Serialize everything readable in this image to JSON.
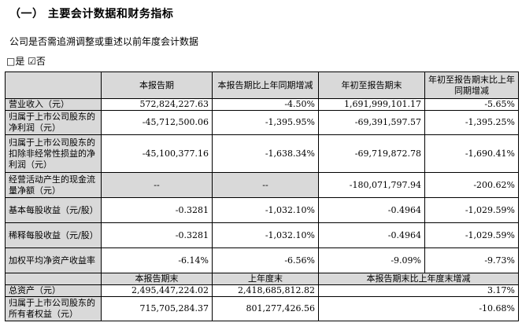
{
  "heading": "（一）  主要会计数据和财务指标",
  "line1": "公司是否需追溯调整或重述以前年度会计数据",
  "line2": "□是 ☑否",
  "table": {
    "headers": [
      "",
      "本报告期",
      "本报告期比上年同期增减",
      "年初至报告期末",
      "年初至报告期末比上年同期增减"
    ],
    "rows": [
      {
        "label": "营业收入（元）",
        "c1": "572,824,227.63",
        "c2": "-4.50%",
        "c3": "1,691,999,101.17",
        "c4": "-5.65%"
      },
      {
        "label": "归属于上市公司股东的净利润（元）",
        "c1": "-45,712,500.06",
        "c2": "-1,395.95%",
        "c3": "-69,391,597.57",
        "c4": "-1,395.25%"
      },
      {
        "label": "归属于上市公司股东的扣除非经常性损益的净利润（元）",
        "c1": "-45,100,377.16",
        "c2": "-1,638.34%",
        "c3": "-69,719,872.78",
        "c4": "-1,690.41%"
      },
      {
        "label": "经营活动产生的现金流量净额（元）",
        "c1": "--",
        "c2": "--",
        "c3": "-180,071,797.94",
        "c4": "-200.62%"
      },
      {
        "label": "基本每股收益（元/股）",
        "c1": "-0.3281",
        "c2": "-1,032.10%",
        "c3": "-0.4964",
        "c4": "-1,029.59%"
      },
      {
        "label": "稀释每股收益（元/股）",
        "c1": "-0.3281",
        "c2": "-1,032.10%",
        "c3": "-0.4964",
        "c4": "-1,029.59%"
      },
      {
        "label": "加权平均净资产收益率",
        "c1": "-6.14%",
        "c2": "-6.56%",
        "c3": "-9.09%",
        "c4": "-9.73%"
      }
    ],
    "headers2": [
      "",
      "本报告期末",
      "上年度末",
      "本报告期末比上年度末增减"
    ],
    "rows2": [
      {
        "label": "总资产（元）",
        "c1": "2,495,447,224.02",
        "c2": "2,418,685,812.82",
        "c3": "3.17%"
      },
      {
        "label": "归属于上市公司股东的所有者权益（元）",
        "c1": "715,705,284.37",
        "c2": "801,277,426.56",
        "c3": "-10.68%"
      }
    ]
  }
}
